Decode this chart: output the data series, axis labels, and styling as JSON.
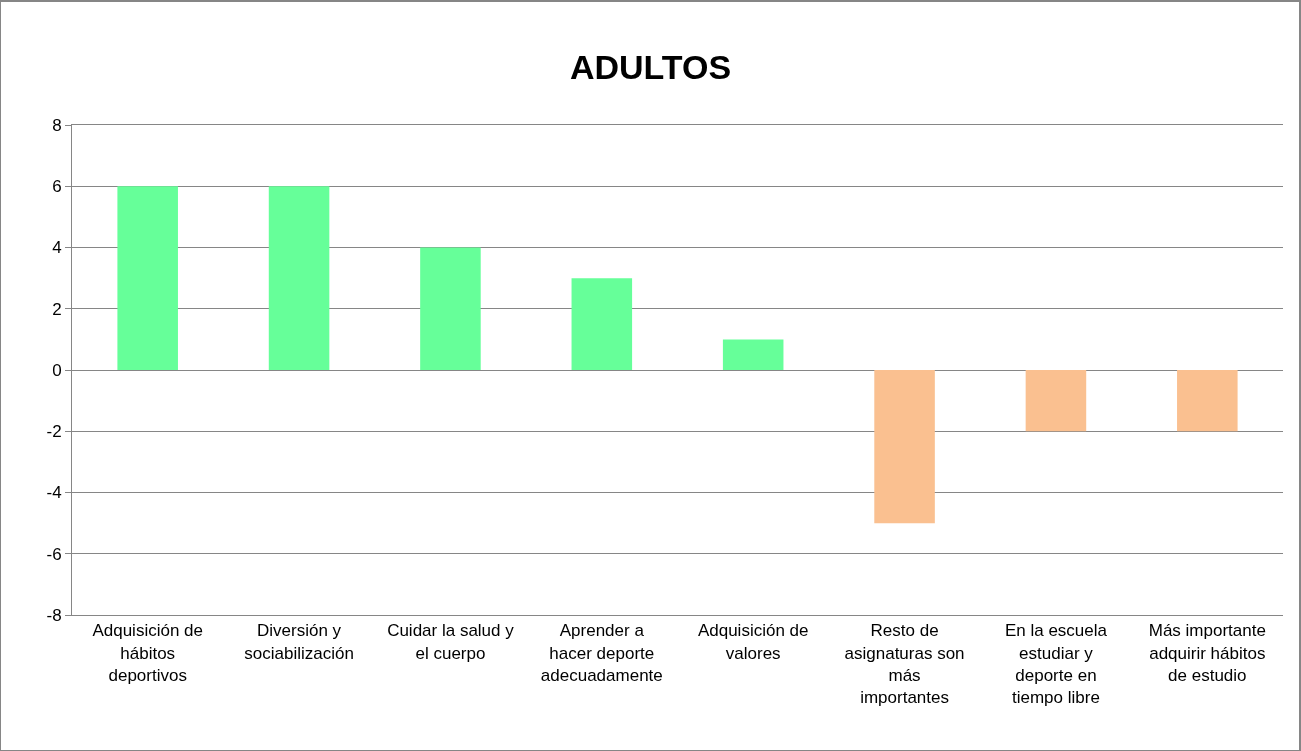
{
  "chart_data": {
    "type": "bar",
    "title": "ADULTOS",
    "categories": [
      "Adquisición de\nhábitos\ndeportivos",
      "Diversión y\nsociabilización",
      "Cuidar la salud y\nel cuerpo",
      "Aprender a\nhacer deporte\nadecuadamente",
      "Adquisición de\nvalores",
      "Resto de\nasignaturas son\nmás\nimportantes",
      "En la escuela\nestudiar y\ndeporte en\ntiempo libre",
      "Más importante\nadquirir hábitos\nde estudio"
    ],
    "values": [
      6,
      6,
      4,
      3,
      1,
      -5,
      -2,
      -2
    ],
    "colors": [
      "#66ff99",
      "#66ff99",
      "#66ff99",
      "#66ff99",
      "#66ff99",
      "#fac090",
      "#fac090",
      "#fac090"
    ],
    "ylim": [
      -8,
      8
    ],
    "yticks": [
      -8,
      -6,
      -4,
      -2,
      0,
      2,
      4,
      6,
      8
    ],
    "grid": "y"
  }
}
